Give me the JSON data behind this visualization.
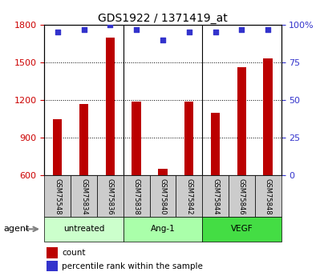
{
  "title": "GDS1922 / 1371419_at",
  "samples": [
    "GSM75548",
    "GSM75834",
    "GSM75836",
    "GSM75838",
    "GSM75840",
    "GSM75842",
    "GSM75844",
    "GSM75846",
    "GSM75848"
  ],
  "counts": [
    1050,
    1170,
    1700,
    1185,
    650,
    1185,
    1100,
    1460,
    1530
  ],
  "percentiles": [
    95,
    97,
    100,
    97,
    90,
    95,
    95,
    97,
    97
  ],
  "bar_color": "#bb0000",
  "dot_color": "#3333cc",
  "ylim_left": [
    600,
    1800
  ],
  "ylim_right": [
    0,
    100
  ],
  "yticks_left": [
    600,
    900,
    1200,
    1500,
    1800
  ],
  "yticks_right": [
    0,
    25,
    50,
    75,
    100
  ],
  "ytick_labels_right": [
    "0",
    "25",
    "50",
    "75",
    "100%"
  ],
  "groups": [
    {
      "label": "untreated",
      "start": 0,
      "end": 3,
      "color": "#ccffcc"
    },
    {
      "label": "Ang-1",
      "start": 3,
      "end": 6,
      "color": "#aaffaa"
    },
    {
      "label": "VEGF",
      "start": 6,
      "end": 9,
      "color": "#44dd44"
    }
  ],
  "agent_label": "agent",
  "legend_count_label": "count",
  "legend_pct_label": "percentile rank within the sample",
  "tick_label_color_left": "#cc0000",
  "tick_label_color_right": "#3333cc",
  "bar_width": 0.35,
  "background_color": "#ffffff",
  "sample_box_color": "#cccccc",
  "group_box_colors": [
    "#ccffcc",
    "#aaffaa",
    "#44dd44"
  ]
}
